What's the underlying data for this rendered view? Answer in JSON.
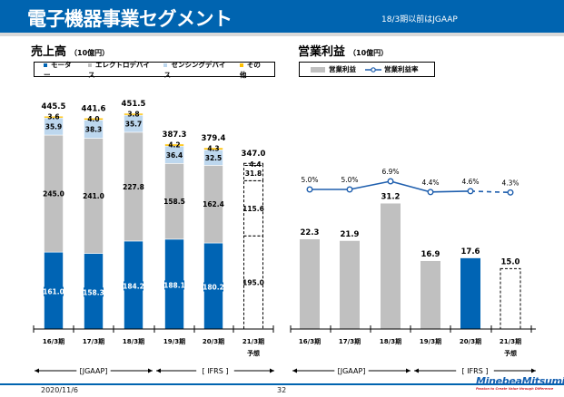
{
  "header": {
    "title": "電子機器事業セグメント",
    "note": "18/3期以前はJGAAP"
  },
  "footer": {
    "date": "2020/11/6",
    "page": "32",
    "logo": "MinebeaMitsumi",
    "tagline": "Passion to Create Value through Difference"
  },
  "colors": {
    "motor": "#0064b4",
    "electro": "#c0c0c0",
    "sensing": "#bdd7ee",
    "other": "#ffc000",
    "brand": "#0064b0"
  },
  "left": {
    "title": "売上高",
    "unit": "（10億円）",
    "legend": [
      "モーター",
      "エレクトロデバイス",
      "センシングデバイス",
      "その他"
    ]
  },
  "right": {
    "title": "営業利益",
    "unit": "（10億円）",
    "legend": [
      "営業利益",
      "営業利益率"
    ]
  },
  "brackets": {
    "jgaap": "[JGAAP]",
    "ifrs": "[ IFRS ]"
  },
  "chart_data": [
    {
      "type": "bar",
      "stacked": true,
      "categories": [
        "16/3期",
        "17/3期",
        "18/3期",
        "19/3期",
        "20/3期",
        "21/3期"
      ],
      "category_sublabels": [
        "",
        "",
        "",
        "",
        "",
        "予想"
      ],
      "series": [
        {
          "name": "モーター",
          "values": [
            161.0,
            158.3,
            184.2,
            188.1,
            180.2,
            195.0
          ]
        },
        {
          "name": "エレクトロデバイス",
          "values": [
            245.0,
            241.0,
            227.8,
            158.5,
            162.4,
            115.6
          ]
        },
        {
          "name": "センシングデバイス",
          "values": [
            35.9,
            38.3,
            35.7,
            36.4,
            32.5,
            31.8
          ]
        },
        {
          "name": "その他",
          "values": [
            3.6,
            4.0,
            3.8,
            4.2,
            4.3,
            4.4
          ]
        }
      ],
      "totals": [
        "445.5",
        "441.6",
        "451.5",
        "387.3",
        "379.4",
        "347.0"
      ],
      "forecast_index": 5,
      "title": "売上高",
      "legend": "top"
    },
    {
      "type": "bar+line",
      "categories": [
        "16/3期",
        "17/3期",
        "18/3期",
        "19/3期",
        "20/3期",
        "21/3期"
      ],
      "category_sublabels": [
        "",
        "",
        "",
        "",
        "",
        "予想"
      ],
      "series": [
        {
          "name": "営業利益",
          "values": [
            22.3,
            21.9,
            31.2,
            16.9,
            17.6,
            15.0
          ],
          "labels": [
            "22.3",
            "21.9",
            "31.2",
            "16.9",
            "17.6",
            "15.0"
          ]
        },
        {
          "name": "営業利益率",
          "values": [
            5.0,
            5.0,
            6.9,
            4.4,
            4.6,
            4.3
          ],
          "labels": [
            "5.0%",
            "5.0%",
            "6.9%",
            "4.4%",
            "4.6%",
            "4.3%"
          ]
        }
      ],
      "forecast_index": 5,
      "title": "営業利益",
      "legend": "top"
    }
  ]
}
